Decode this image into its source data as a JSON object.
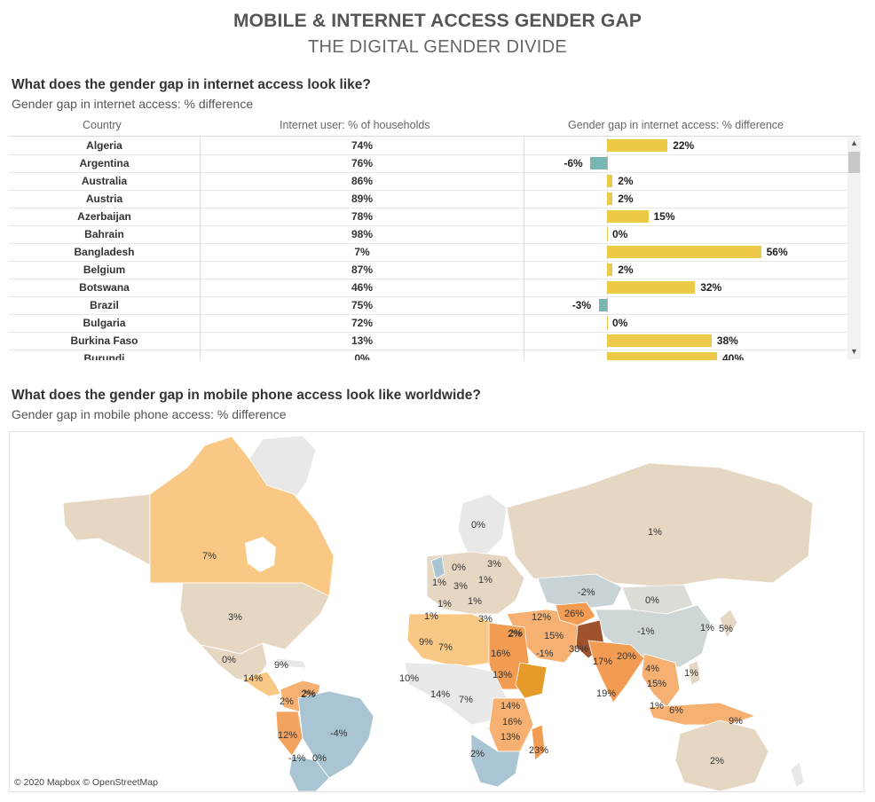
{
  "header": {
    "title": "MOBILE & INTERNET ACCESS GENDER GAP",
    "subtitle": "THE DIGITAL GENDER DIVIDE"
  },
  "internet_section": {
    "heading": "What does the gender gap in internet access look like?",
    "subheading": "Gender gap in internet access: % difference",
    "col_country": "Country",
    "col_users": "Internet user: % of households",
    "col_gap": "Gender gap in internet access: % difference"
  },
  "mobile_section": {
    "heading": "What does the gender gap in mobile phone access look like worldwide?",
    "subheading": "Gender gap in mobile phone access: % difference"
  },
  "map": {
    "attribution": "© 2020 Mapbox © OpenStreetMap"
  },
  "colors": {
    "positive_bar": "#EDC948",
    "negative_bar": "#76B7B2",
    "map_low": "#A9C4D3",
    "map_mid": "#E6D7C2",
    "map_high": "#F28E2B",
    "map_top": "#A0522D",
    "land_nodata": "#E8E8E8"
  },
  "chart_data": [
    {
      "type": "table",
      "columns": [
        "Country",
        "Internet user: % of households",
        "Gender gap in internet access: % difference"
      ],
      "rows": [
        {
          "country": "Algeria",
          "users": "74%",
          "gap": 22
        },
        {
          "country": "Argentina",
          "users": "76%",
          "gap": -6
        },
        {
          "country": "Australia",
          "users": "86%",
          "gap": 2
        },
        {
          "country": "Austria",
          "users": "89%",
          "gap": 2
        },
        {
          "country": "Azerbaijan",
          "users": "78%",
          "gap": 15
        },
        {
          "country": "Bahrain",
          "users": "98%",
          "gap": 0
        },
        {
          "country": "Bangladesh",
          "users": "7%",
          "gap": 56
        },
        {
          "country": "Belgium",
          "users": "87%",
          "gap": 2
        },
        {
          "country": "Botswana",
          "users": "46%",
          "gap": 32
        },
        {
          "country": "Brazil",
          "users": "75%",
          "gap": -3
        },
        {
          "country": "Bulgaria",
          "users": "72%",
          "gap": 0
        },
        {
          "country": "Burkina Faso",
          "users": "13%",
          "gap": 38
        },
        {
          "country": "Burundi",
          "users": "0%",
          "gap": 40
        }
      ]
    },
    {
      "type": "map",
      "labels": [
        {
          "region": "Canada",
          "value": "7%"
        },
        {
          "region": "United States",
          "value": "3%"
        },
        {
          "region": "Mexico",
          "value": "0%"
        },
        {
          "region": "Guatemala",
          "value": "14%"
        },
        {
          "region": "Dominican Republic",
          "value": "9%"
        },
        {
          "region": "Venezuela",
          "value": "2%"
        },
        {
          "region": "Guyana",
          "value": "2%"
        },
        {
          "region": "Colombia",
          "value": "2%"
        },
        {
          "region": "Peru",
          "value": "12%"
        },
        {
          "region": "Brazil",
          "value": "-4%"
        },
        {
          "region": "Chile",
          "value": "-1%"
        },
        {
          "region": "Argentina",
          "value": "0%"
        },
        {
          "region": "Russia",
          "value": "1%"
        },
        {
          "region": "Kazakhstan",
          "value": "-2%"
        },
        {
          "region": "Mongolia",
          "value": "0%"
        },
        {
          "region": "China",
          "value": "-1%"
        },
        {
          "region": "Korea",
          "value": "1%"
        },
        {
          "region": "Japan",
          "value": "5%"
        },
        {
          "region": "Finland",
          "value": "0%"
        },
        {
          "region": "Sweden",
          "value": "0%"
        },
        {
          "region": "Latvia",
          "value": "3%"
        },
        {
          "region": "UK",
          "value": "1%"
        },
        {
          "region": "Germany",
          "value": "3%"
        },
        {
          "region": "Poland",
          "value": "1%"
        },
        {
          "region": "France",
          "value": "1%"
        },
        {
          "region": "Austria",
          "value": "1%"
        },
        {
          "region": "Spain",
          "value": "1%"
        },
        {
          "region": "Italy",
          "value": "3%"
        },
        {
          "region": "Turkey",
          "value": "2%"
        },
        {
          "region": "Iran",
          "value": "12%"
        },
        {
          "region": "Afghanistan",
          "value": "26%"
        },
        {
          "region": "Saudi Arabia",
          "value": "15%"
        },
        {
          "region": "Yemen",
          "value": "-1%"
        },
        {
          "region": "Pakistan",
          "value": "38%"
        },
        {
          "region": "India",
          "value": "17%"
        },
        {
          "region": "Bangladesh",
          "value": "20%"
        },
        {
          "region": "Myanmar",
          "value": "4%"
        },
        {
          "region": "Thailand",
          "value": "15%"
        },
        {
          "region": "Philippines",
          "value": "1%"
        },
        {
          "region": "Sri Lanka",
          "value": "19%"
        },
        {
          "region": "Malaysia",
          "value": "1%"
        },
        {
          "region": "Indonesia",
          "value": "6%"
        },
        {
          "region": "Papua New Guinea",
          "value": "9%"
        },
        {
          "region": "Australia",
          "value": "2%"
        },
        {
          "region": "Morocco",
          "value": "9%"
        },
        {
          "region": "Algeria",
          "value": "7%"
        },
        {
          "region": "Egypt",
          "value": "16%"
        },
        {
          "region": "Sudan",
          "value": "13%"
        },
        {
          "region": "Ethiopia",
          "value": "2%"
        },
        {
          "region": "Senegal",
          "value": "10%"
        },
        {
          "region": "Ghana",
          "value": "14%"
        },
        {
          "region": "Nigeria",
          "value": "7%"
        },
        {
          "region": "Tanzania",
          "value": "14%"
        },
        {
          "region": "Zambia",
          "value": "16%"
        },
        {
          "region": "Mozambique",
          "value": "13%"
        },
        {
          "region": "Madagascar",
          "value": "23%"
        },
        {
          "region": "South Africa",
          "value": "2%"
        }
      ]
    }
  ]
}
